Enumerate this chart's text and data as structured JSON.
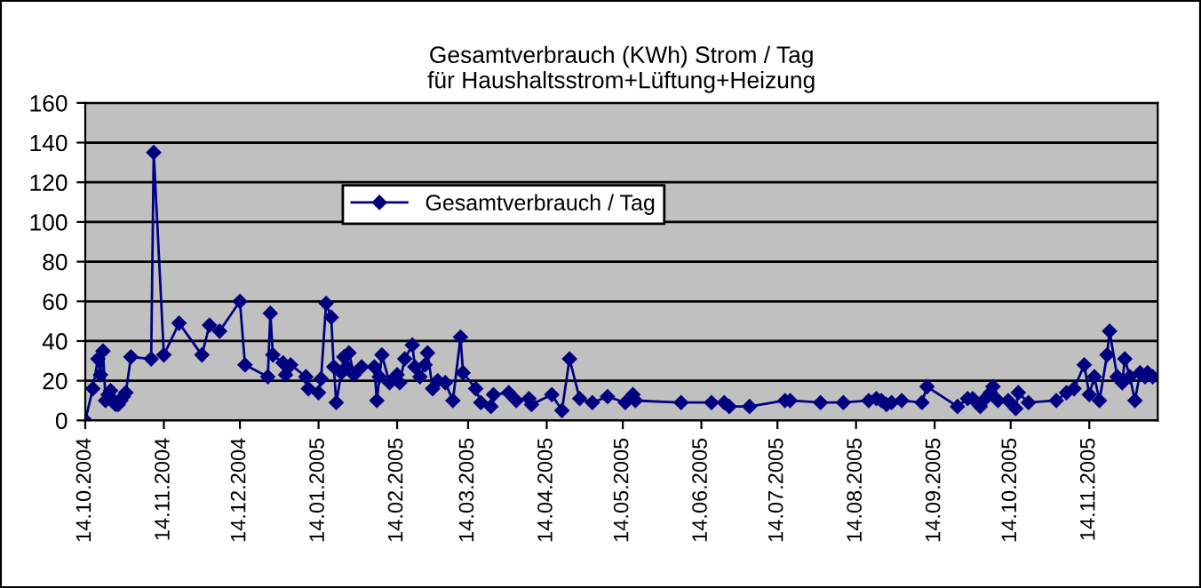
{
  "chart_data": {
    "type": "line",
    "title": "Gesamtverbrauch (KWh) Strom / Tag\nfür Haushaltsstrom+Lüftung+Heizung",
    "x": [
      "2004-10-14",
      "2004-10-17",
      "2004-10-19",
      "2004-10-20",
      "2004-10-21",
      "2004-10-22",
      "2004-10-23",
      "2004-10-24",
      "2004-10-25",
      "2004-10-26",
      "2004-10-27",
      "2004-10-28",
      "2004-10-29",
      "2004-10-30",
      "2004-11-01",
      "2004-11-09",
      "2004-11-10",
      "2004-11-14",
      "2004-11-20",
      "2004-11-29",
      "2004-12-02",
      "2004-12-06",
      "2004-12-14",
      "2004-12-16",
      "2004-12-25",
      "2004-12-26",
      "2004-12-27",
      "2004-12-31",
      "2005-01-01",
      "2005-01-03",
      "2005-01-09",
      "2005-01-10",
      "2005-01-14",
      "2005-01-15",
      "2005-01-17",
      "2005-01-19",
      "2005-01-20",
      "2005-01-21",
      "2005-01-23",
      "2005-01-24",
      "2005-01-25",
      "2005-01-26",
      "2005-01-28",
      "2005-01-31",
      "2005-02-05",
      "2005-02-06",
      "2005-02-07",
      "2005-02-08",
      "2005-02-11",
      "2005-02-14",
      "2005-02-15",
      "2005-02-17",
      "2005-02-20",
      "2005-02-21",
      "2005-02-23",
      "2005-02-25",
      "2005-02-26",
      "2005-02-28",
      "2005-03-02",
      "2005-03-05",
      "2005-03-08",
      "2005-03-11",
      "2005-03-12",
      "2005-03-17",
      "2005-03-19",
      "2005-03-23",
      "2005-03-24",
      "2005-03-30",
      "2005-04-02",
      "2005-04-07",
      "2005-04-08",
      "2005-04-16",
      "2005-04-20",
      "2005-04-23",
      "2005-04-27",
      "2005-05-02",
      "2005-05-08",
      "2005-05-15",
      "2005-05-18",
      "2005-05-19",
      "2005-06-06",
      "2005-06-18",
      "2005-06-23",
      "2005-06-25",
      "2005-07-03",
      "2005-07-17",
      "2005-07-19",
      "2005-07-31",
      "2005-08-09",
      "2005-08-19",
      "2005-08-22",
      "2005-08-24",
      "2005-08-26",
      "2005-08-28",
      "2005-09-01",
      "2005-09-09",
      "2005-09-11",
      "2005-09-23",
      "2005-09-27",
      "2005-09-29",
      "2005-10-02",
      "2005-10-04",
      "2005-10-06",
      "2005-10-07",
      "2005-10-09",
      "2005-10-13",
      "2005-10-16",
      "2005-10-17",
      "2005-10-21",
      "2005-11-01",
      "2005-11-05",
      "2005-11-08",
      "2005-11-12",
      "2005-11-14",
      "2005-11-16",
      "2005-11-18",
      "2005-11-21",
      "2005-11-22",
      "2005-11-25",
      "2005-11-27",
      "2005-11-28",
      "2005-11-30",
      "2005-12-02",
      "2005-12-04",
      "2005-12-06",
      "2005-12-07",
      "2005-12-09"
    ],
    "series": [
      {
        "name": "Gesamtverbrauch / Tag",
        "color": "#000080",
        "values": [
          0,
          16,
          31,
          23,
          35,
          10,
          13,
          15,
          10,
          8,
          8,
          10,
          12,
          14,
          32,
          31,
          135,
          33,
          49,
          33,
          48,
          45,
          60,
          28,
          22,
          54,
          33,
          29,
          23,
          28,
          22,
          16,
          14,
          21,
          59,
          52,
          27,
          9,
          24,
          32,
          27,
          34,
          23,
          27,
          27,
          10,
          22,
          33,
          19,
          23,
          19,
          31,
          38,
          27,
          22,
          28,
          34,
          16,
          20,
          19,
          10,
          42,
          24,
          16,
          9,
          7,
          13,
          14,
          10,
          11,
          8,
          13,
          5,
          31,
          11,
          9,
          12,
          9,
          13,
          10,
          9,
          9,
          9,
          7,
          7,
          10,
          10,
          9,
          9,
          10,
          11,
          10,
          8,
          9,
          10,
          9,
          17,
          7,
          11,
          11,
          7,
          11,
          14,
          17,
          10,
          10,
          6,
          14,
          9,
          10,
          14,
          16,
          28,
          13,
          22,
          10,
          33,
          45,
          22,
          19,
          31,
          22,
          10,
          24,
          22,
          24,
          22
        ]
      }
    ],
    "xlim": [
      "2004-10-14",
      "2005-12-11"
    ],
    "xticks": [
      {
        "value": "2004-10-14",
        "label": "14.10.2004"
      },
      {
        "value": "2004-11-14",
        "label": "14.11.2004"
      },
      {
        "value": "2004-12-14",
        "label": "14.12.2004"
      },
      {
        "value": "2005-01-14",
        "label": "14.01.2005"
      },
      {
        "value": "2005-02-14",
        "label": "14.02.2005"
      },
      {
        "value": "2005-03-14",
        "label": "14.03.2005"
      },
      {
        "value": "2005-04-14",
        "label": "14.04.2005"
      },
      {
        "value": "2005-05-14",
        "label": "14.05.2005"
      },
      {
        "value": "2005-06-14",
        "label": "14.06.2005"
      },
      {
        "value": "2005-07-14",
        "label": "14.07.2005"
      },
      {
        "value": "2005-08-14",
        "label": "14.08.2005"
      },
      {
        "value": "2005-09-14",
        "label": "14.09.2005"
      },
      {
        "value": "2005-10-14",
        "label": "14.10.2005"
      },
      {
        "value": "2005-11-14",
        "label": "14.11.2005"
      }
    ],
    "ylim": [
      0,
      160
    ],
    "yticks": [
      0,
      20,
      40,
      60,
      80,
      100,
      120,
      140,
      160
    ],
    "grid": "y",
    "legend": "top",
    "marker": "diamond",
    "line_style": "solid"
  }
}
